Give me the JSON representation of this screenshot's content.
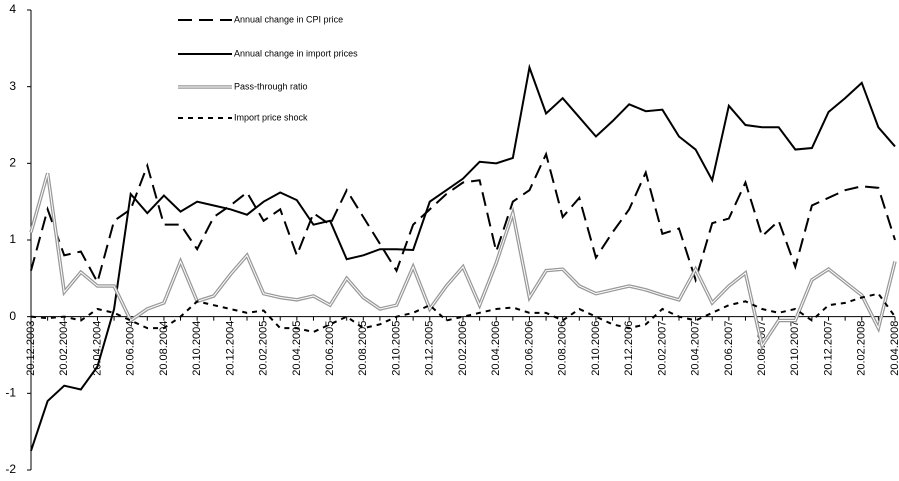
{
  "chart_data": {
    "type": "line",
    "categories": [
      "20.12.2003",
      null,
      "20.02.2004",
      null,
      "20.04.2004",
      null,
      "20.06.2004",
      null,
      "20.08.2004",
      null,
      "20.10.2004",
      null,
      "20.12.2004",
      null,
      "20.02.2005",
      null,
      "20.04.2005",
      null,
      "20.06.2005",
      null,
      "20.08.2005",
      null,
      "20.10.2005",
      null,
      "20.12.2005",
      null,
      "20.02.2006",
      null,
      "20.04.2006",
      null,
      "20.06.2006",
      null,
      "20.08.2006",
      null,
      "20.10.2006",
      null,
      "20.12.2006",
      null,
      "20.02.2007",
      null,
      "20.04.2007",
      null,
      "20.06.2007",
      null,
      "20.08.2007",
      null,
      "20.10.2007",
      null,
      "20.12.2007",
      null,
      "20.02.2008",
      null,
      "20.04.2008"
    ],
    "series": [
      {
        "name": "Annual change in CPI price",
        "color": "#000000",
        "style": "dashed",
        "values": [
          0.6,
          1.4,
          0.8,
          0.85,
          0.45,
          1.25,
          1.4,
          1.97,
          1.2,
          1.2,
          0.88,
          1.3,
          1.45,
          1.62,
          1.25,
          1.4,
          0.8,
          1.35,
          1.2,
          1.65,
          1.3,
          0.95,
          0.6,
          1.2,
          1.4,
          1.6,
          1.75,
          1.78,
          0.85,
          1.5,
          1.65,
          2.12,
          1.3,
          1.55,
          0.77,
          1.1,
          1.4,
          1.88,
          1.08,
          1.15,
          0.48,
          1.22,
          1.28,
          1.75,
          1.05,
          1.25,
          0.65,
          1.45,
          1.55,
          1.65,
          1.7,
          1.68,
          1.0
        ]
      },
      {
        "name": "Annual change in import prices",
        "color": "#000000",
        "style": "solid",
        "values": [
          -1.75,
          -1.1,
          -0.9,
          -0.95,
          -0.65,
          0.1,
          1.6,
          1.35,
          1.58,
          1.37,
          1.5,
          1.45,
          1.4,
          1.33,
          1.5,
          1.62,
          1.52,
          1.2,
          1.25,
          0.75,
          0.8,
          0.88,
          0.88,
          0.87,
          1.5,
          1.65,
          1.8,
          2.02,
          2.0,
          2.07,
          3.25,
          2.65,
          2.85,
          2.6,
          2.35,
          2.55,
          2.77,
          2.68,
          2.7,
          2.35,
          2.18,
          1.78,
          2.75,
          2.5,
          2.47,
          2.47,
          2.18,
          2.2,
          2.67,
          2.85,
          3.05,
          2.47,
          2.22
        ]
      },
      {
        "name": "Pass-through ratio",
        "color": "#999999",
        "style": "double",
        "values": [
          1.1,
          1.87,
          0.32,
          0.58,
          0.4,
          0.4,
          -0.05,
          0.1,
          0.18,
          0.72,
          0.2,
          0.27,
          0.55,
          0.8,
          0.3,
          0.25,
          0.22,
          0.27,
          0.15,
          0.5,
          0.25,
          0.1,
          0.15,
          0.65,
          0.1,
          0.4,
          0.65,
          0.15,
          0.7,
          1.35,
          0.25,
          0.6,
          0.62,
          0.4,
          0.3,
          0.35,
          0.4,
          0.35,
          0.28,
          0.22,
          0.62,
          0.18,
          0.4,
          0.57,
          -0.38,
          -0.05,
          -0.05,
          0.48,
          0.62,
          0.45,
          0.28,
          -0.15,
          0.72
        ]
      },
      {
        "name": "Import price shock",
        "color": "#000000",
        "style": "dotted",
        "values": [
          0,
          -0.02,
          0,
          -0.05,
          0.1,
          0.05,
          -0.05,
          -0.15,
          -0.15,
          0,
          0.2,
          0.15,
          0.1,
          0.05,
          0.08,
          -0.15,
          -0.15,
          -0.2,
          -0.1,
          0,
          -0.15,
          -0.1,
          0,
          0.05,
          0.15,
          -0.05,
          0,
          0.05,
          0.1,
          0.12,
          0.05,
          0.05,
          -0.05,
          0.1,
          0,
          -0.1,
          -0.15,
          -0.1,
          0.1,
          0,
          -0.05,
          0.05,
          0.15,
          0.2,
          0.1,
          0.05,
          0.1,
          -0.05,
          0.15,
          0.18,
          0.25,
          0.3,
          0.0
        ]
      }
    ],
    "ylim": [
      -2,
      4
    ],
    "yticks": [
      -2,
      -1,
      0,
      1,
      2,
      3,
      4
    ],
    "legend": "upper left"
  }
}
